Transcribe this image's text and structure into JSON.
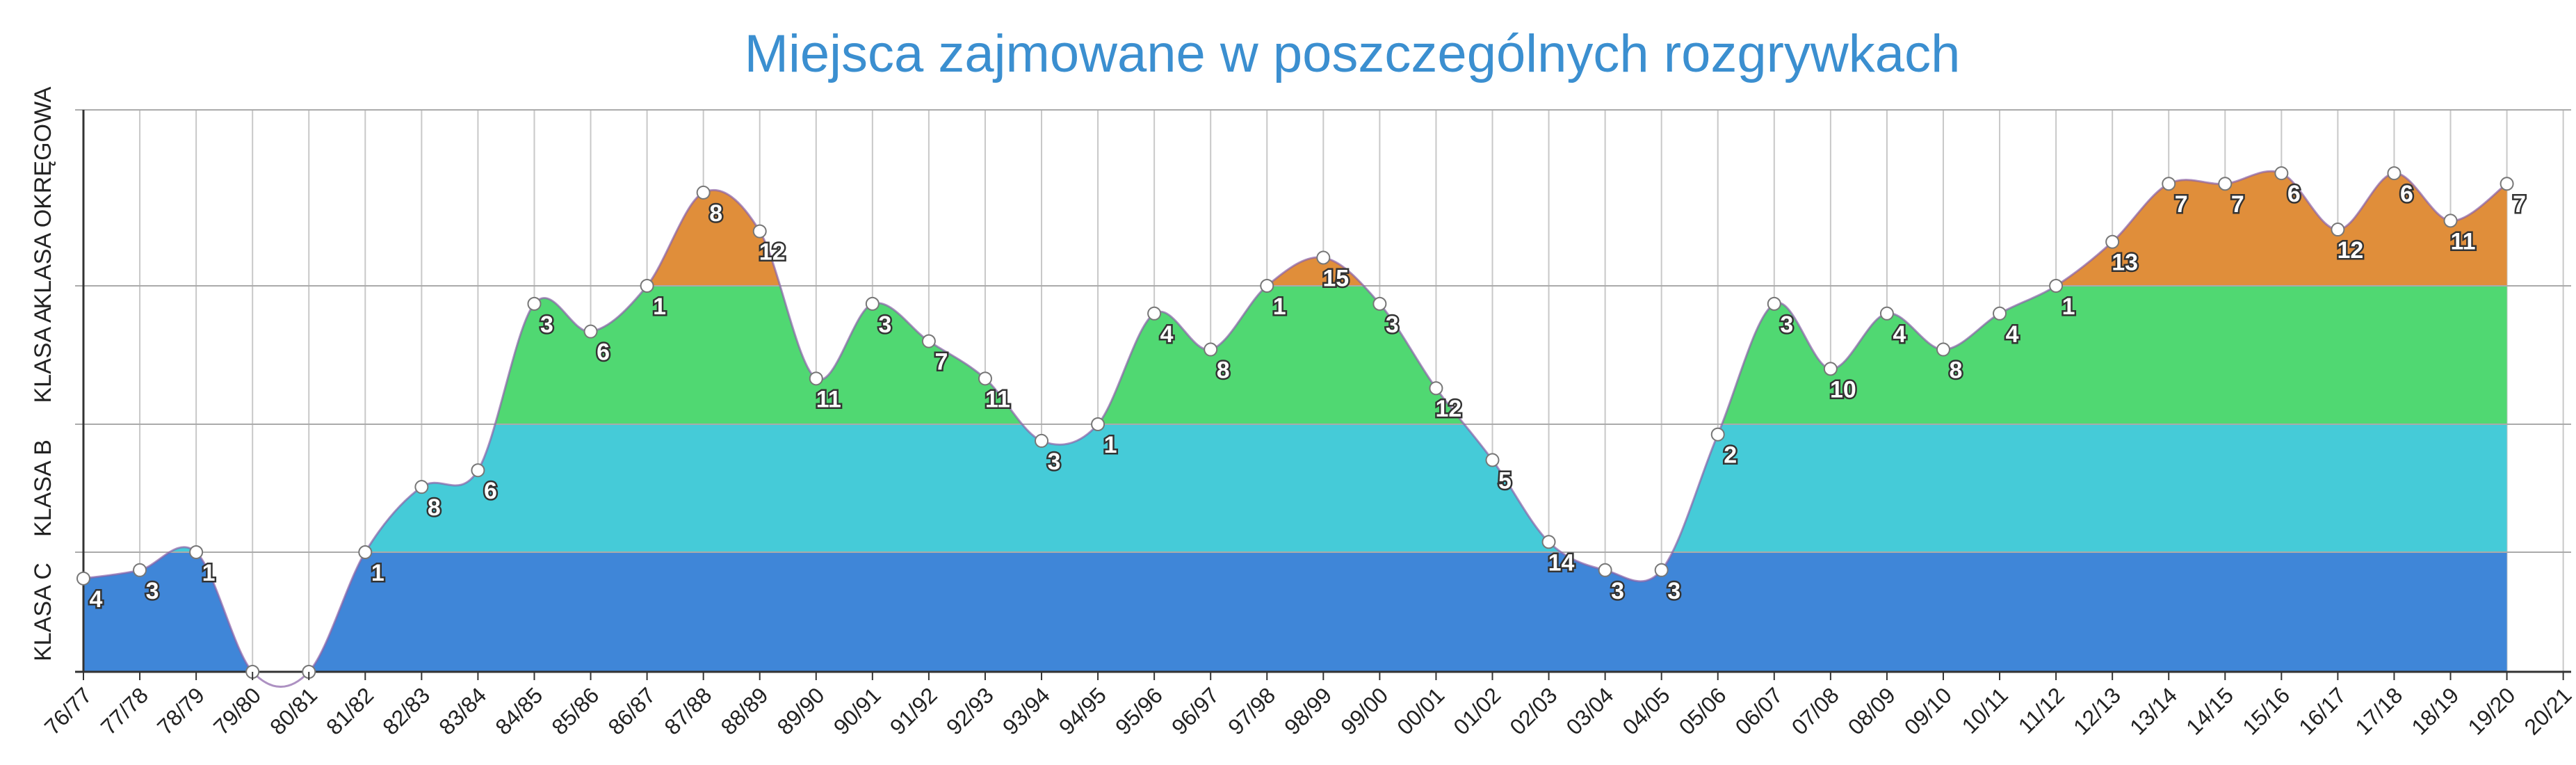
{
  "chart_data": {
    "type": "area",
    "title": "Miejsca zajmowane w poszczególnych rozgrywkach",
    "categories": [
      "76/77",
      "77/78",
      "78/79",
      "79/80",
      "80/81",
      "81/82",
      "82/83",
      "83/84",
      "84/85",
      "85/86",
      "86/87",
      "87/88",
      "88/89",
      "89/90",
      "90/91",
      "91/92",
      "92/93",
      "93/94",
      "94/95",
      "95/96",
      "96/97",
      "97/98",
      "98/99",
      "99/00",
      "00/01",
      "01/02",
      "02/03",
      "03/04",
      "04/05",
      "05/06",
      "06/07",
      "07/08",
      "08/09",
      "09/10",
      "10/11",
      "11/12",
      "12/13",
      "13/14",
      "14/15",
      "15/16",
      "16/17",
      "17/18",
      "18/19",
      "19/20",
      "20/21"
    ],
    "values": [
      0.78,
      0.85,
      1.0,
      0,
      0,
      1.0,
      1.51,
      1.64,
      2.87,
      2.67,
      3.0,
      3.53,
      3.31,
      2.33,
      2.87,
      2.6,
      2.33,
      1.87,
      2.0,
      2.8,
      2.54,
      3.0,
      3.16,
      2.87,
      2.26,
      1.72,
      1.08,
      0.85,
      0.85,
      1.92,
      2.87,
      2.4,
      2.8,
      2.54,
      2.8,
      3.0,
      3.25,
      3.58,
      3.58,
      3.64,
      3.32,
      3.64,
      3.37,
      3.58,
      null
    ],
    "places": [
      4,
      3,
      1,
      null,
      null,
      1,
      8,
      6,
      3,
      6,
      1,
      8,
      12,
      11,
      3,
      7,
      11,
      3,
      1,
      4,
      8,
      1,
      15,
      3,
      12,
      5,
      14,
      3,
      3,
      2,
      3,
      10,
      4,
      8,
      4,
      1,
      13,
      7,
      7,
      6,
      12,
      6,
      11,
      7,
      null
    ],
    "bands": [
      {
        "name": "KLASA C",
        "color": "#3f86d8"
      },
      {
        "name": "KLASA B",
        "color": "#45cbd8"
      },
      {
        "name": "KLASA A",
        "color": "#50d872"
      },
      {
        "name": "KLASA OKRĘGOWA",
        "color": "#e08e3a"
      }
    ],
    "ylim": [
      0,
      4
    ],
    "yticks": [
      0,
      1,
      2,
      3,
      4
    ],
    "line_color": "#8a62a8",
    "grid": true
  }
}
